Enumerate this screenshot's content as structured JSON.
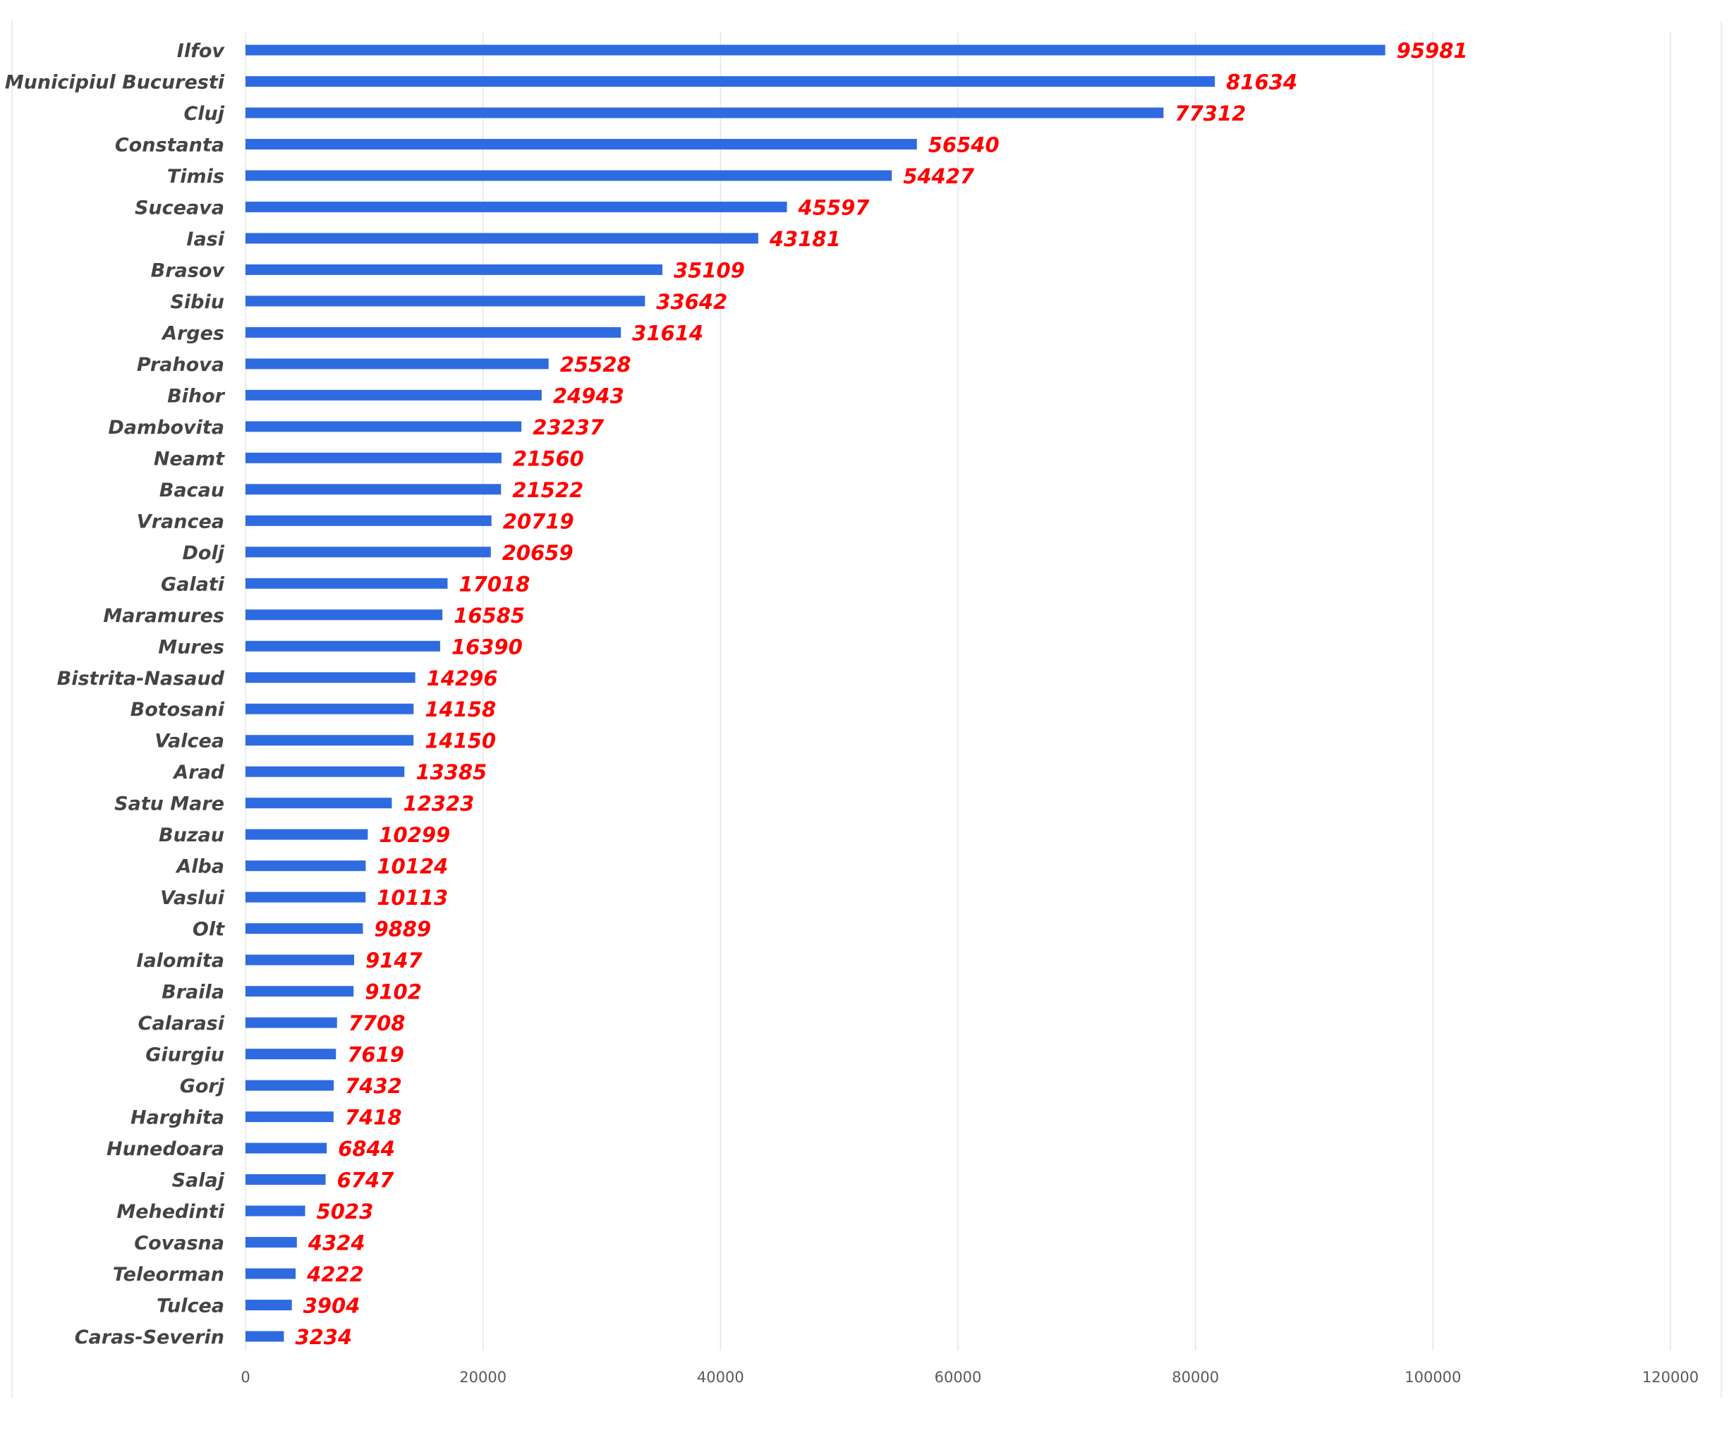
{
  "colors": {
    "bar": "#2F6BE0",
    "data_label": "#FF0000",
    "gridline": "#E6E6E6",
    "frame": "#D9D9D9"
  },
  "chart_data": {
    "type": "bar",
    "orientation": "horizontal",
    "title": "",
    "xlabel": "",
    "ylabel": "",
    "xlim": [
      0,
      120000
    ],
    "x_ticks": [
      0,
      20000,
      40000,
      60000,
      80000,
      100000,
      120000
    ],
    "x_tick_labels": [
      "0",
      "20000",
      "40000",
      "60000",
      "80000",
      "100000",
      "120000"
    ],
    "grid": "vertical",
    "legend": "none",
    "categories": [
      "Ilfov",
      "Municipiul Bucuresti",
      "Cluj",
      "Constanta",
      "Timis",
      "Suceava",
      "Iasi",
      "Brasov",
      "Sibiu",
      "Arges",
      "Prahova",
      "Bihor",
      "Dambovita",
      "Neamt",
      "Bacau",
      "Vrancea",
      "Dolj",
      "Galati",
      "Maramures",
      "Mures",
      "Bistrita-Nasaud",
      "Botosani",
      "Valcea",
      "Arad",
      "Satu Mare",
      "Buzau",
      "Alba",
      "Vaslui",
      "Olt",
      "Ialomita",
      "Braila",
      "Calarasi",
      "Giurgiu",
      "Gorj",
      "Harghita",
      "Hunedoara",
      "Salaj",
      "Mehedinti",
      "Covasna",
      "Teleorman",
      "Tulcea",
      "Caras-Severin"
    ],
    "values": [
      95981,
      81634,
      77312,
      56540,
      54427,
      45597,
      43181,
      35109,
      33642,
      31614,
      25528,
      24943,
      23237,
      21560,
      21522,
      20719,
      20659,
      17018,
      16585,
      16390,
      14296,
      14158,
      14150,
      13385,
      12323,
      10299,
      10124,
      10113,
      9889,
      9147,
      9102,
      7708,
      7619,
      7432,
      7418,
      6844,
      6747,
      5023,
      4324,
      4222,
      3904,
      3234
    ],
    "data_labels": [
      "95981",
      "81634",
      "77312",
      "56540",
      "54427",
      "45597",
      "43181",
      "35109",
      "33642",
      "31614",
      "25528",
      "24943",
      "23237",
      "21560",
      "21522",
      "20719",
      "20659",
      "17018",
      "16585",
      "16390",
      "14296",
      "14158",
      "14150",
      "13385",
      "12323",
      "10299",
      "10124",
      "10113",
      "9889",
      "9147",
      "9102",
      "7708",
      "7619",
      "7432",
      "7418",
      "6844",
      "6747",
      "5023",
      "4324",
      "4222",
      "3904",
      "3234"
    ]
  }
}
